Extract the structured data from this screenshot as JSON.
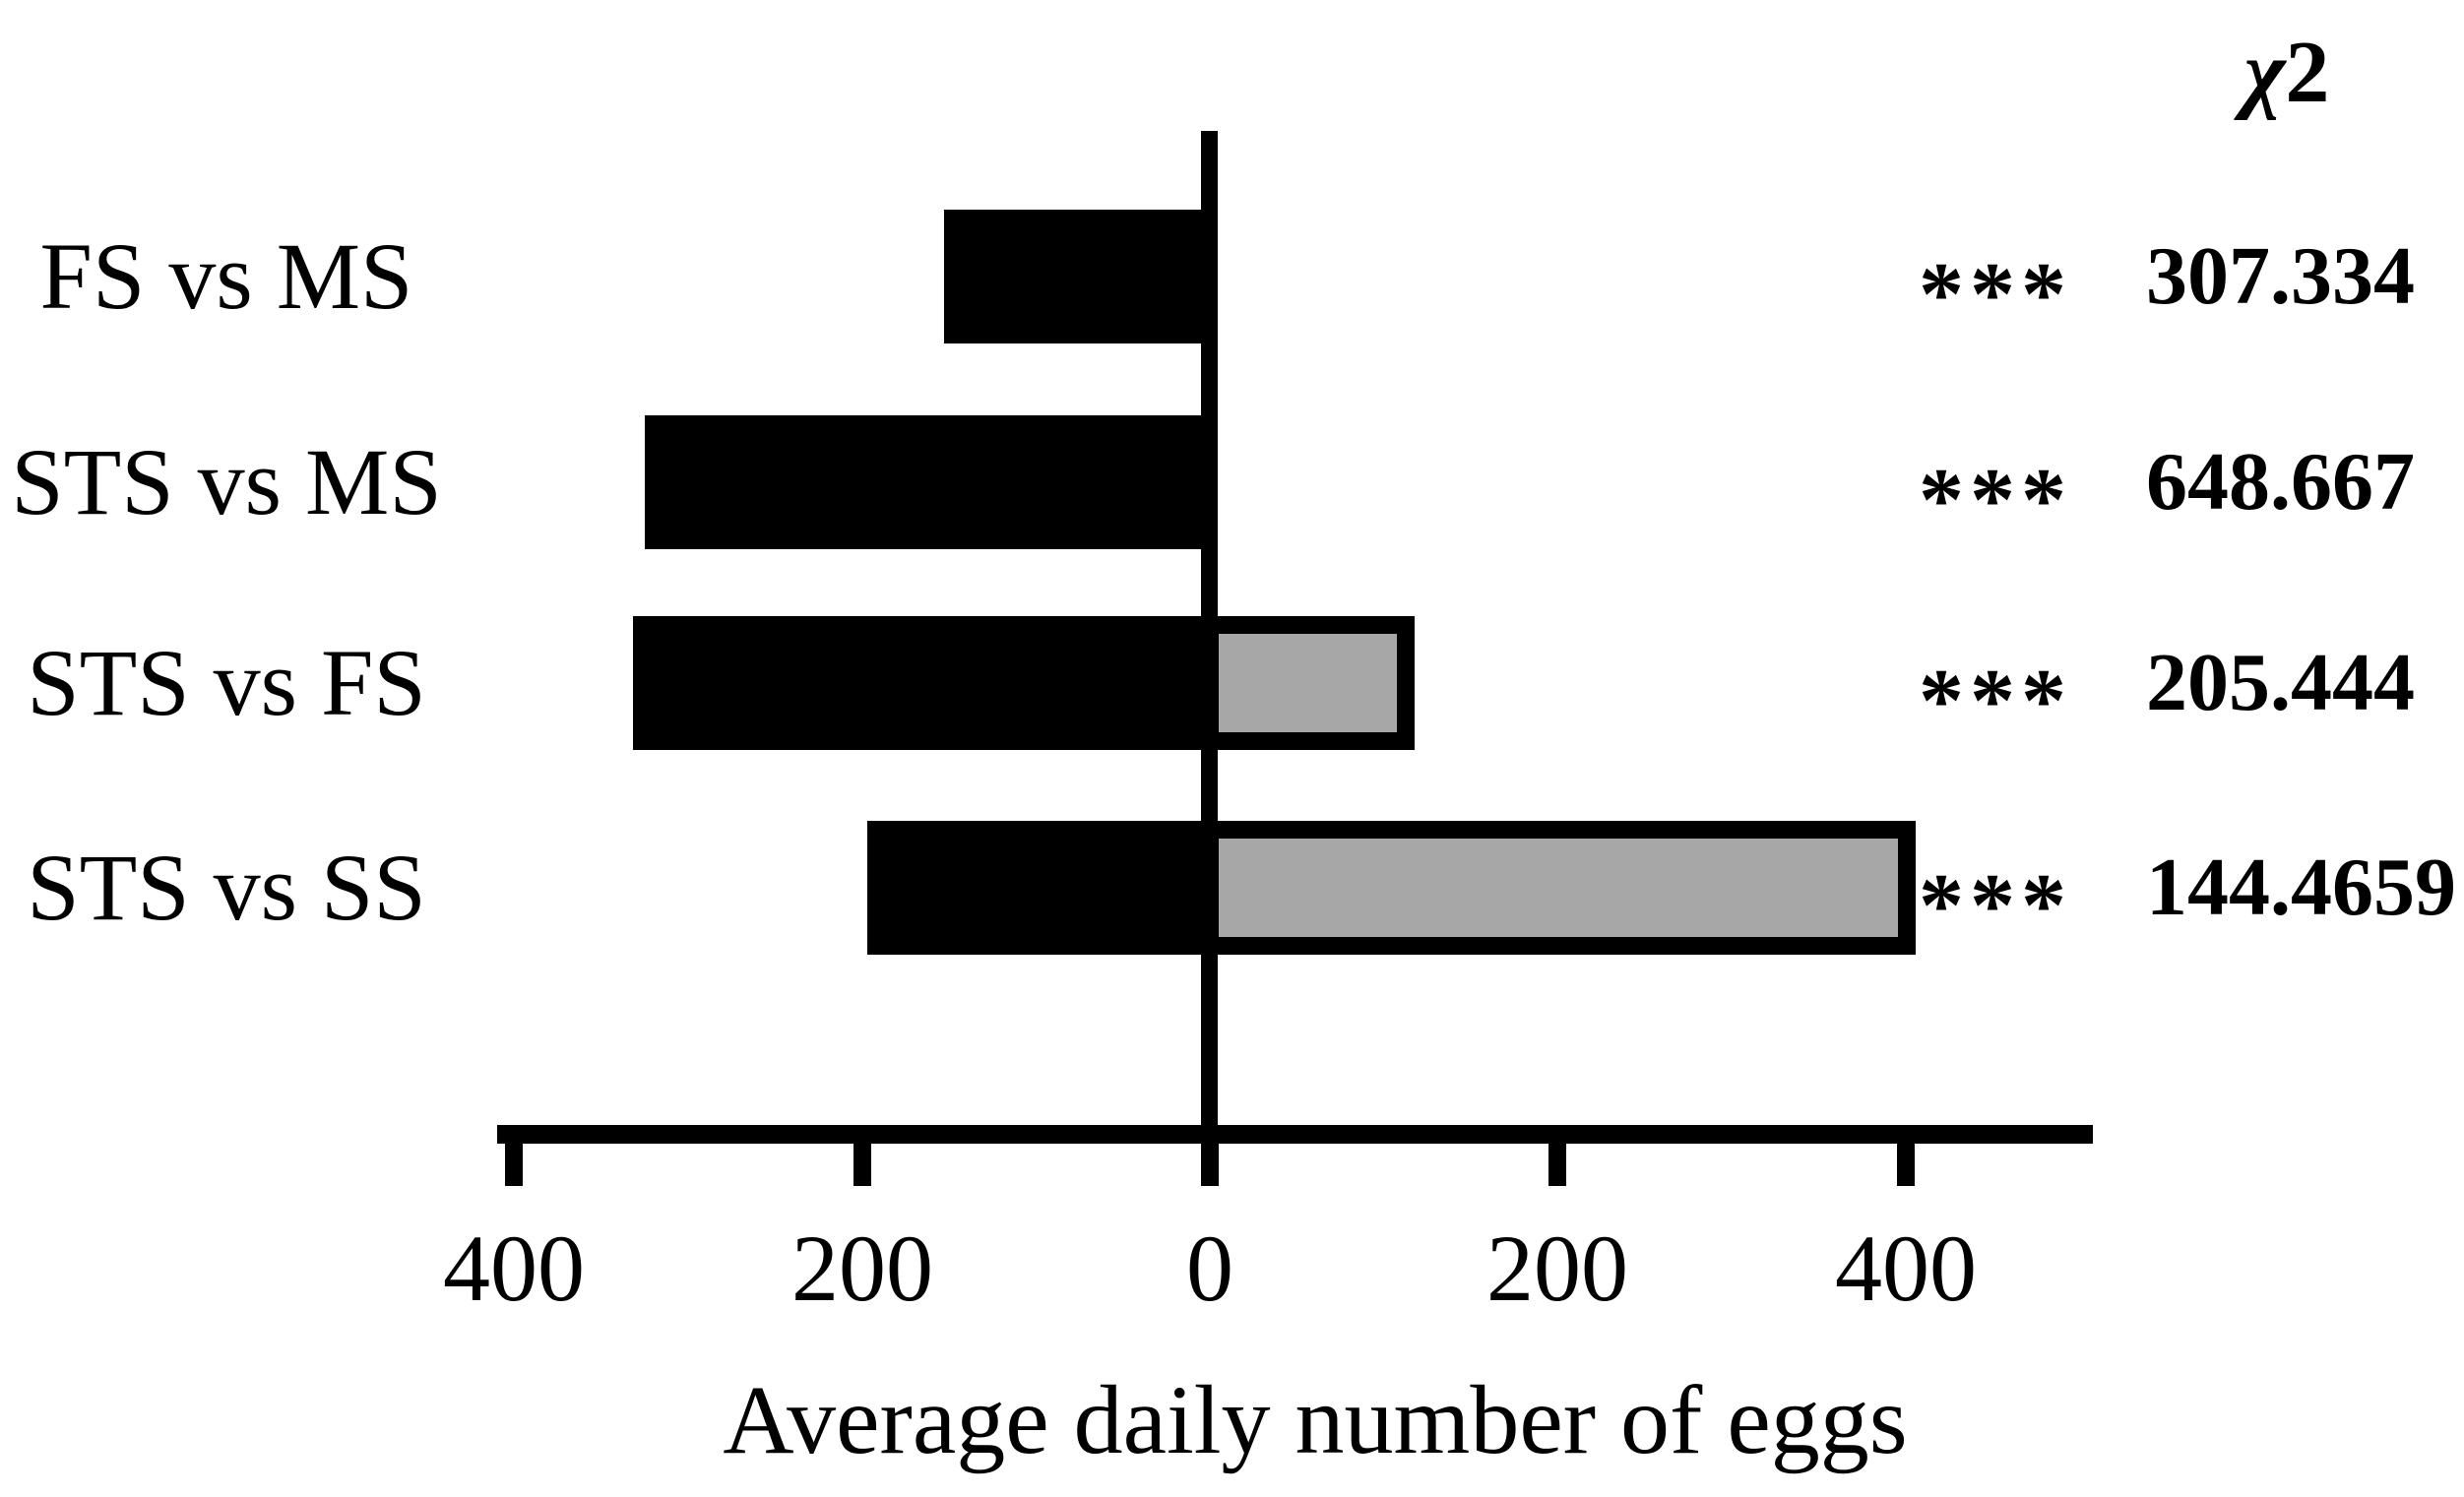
{
  "figure": {
    "background": "#ffffff",
    "black": "#000000",
    "gray_fill": "#a7a7a7",
    "gray_border": "#000000"
  },
  "chart_data": {
    "type": "bar",
    "orientation": "horizontal-diverging",
    "title": "",
    "categories": [
      "FS vs MS",
      "STS vs MS",
      "STS vs FS",
      "STS vs SS"
    ],
    "series": [
      {
        "name": "left-black-bar",
        "direction": "left",
        "color": "#000000",
        "values": [
          153,
          325,
          332,
          197
        ]
      },
      {
        "name": "right-gray-bar",
        "direction": "right",
        "color": "#a7a7a7",
        "values": [
          0,
          0,
          118,
          406
        ]
      }
    ],
    "xlabel": "Average daily number of eggs",
    "ylabel": "",
    "x_axis": {
      "ticks": [
        -400,
        -200,
        0,
        200,
        400
      ],
      "tick_labels": [
        "400",
        "200",
        "0",
        "200",
        "400"
      ],
      "range": [
        -410,
        508
      ]
    },
    "grid": false,
    "legend": "none",
    "significance": [
      "***",
      "***",
      "***",
      "***"
    ],
    "chi_square": {
      "header_chi": "χ",
      "header_sup": "2",
      "values": [
        "307.334",
        "648.667",
        "205.444",
        "144.4659"
      ]
    }
  }
}
